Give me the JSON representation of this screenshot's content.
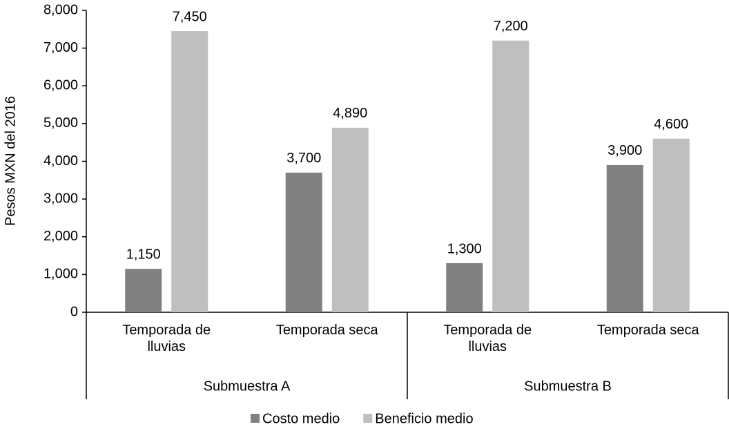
{
  "chart_data": {
    "type": "bar",
    "y_label": "Pesos MXN del 2016",
    "groups": [
      "Submuestra A",
      "Submuestra B"
    ],
    "categories": [
      "Temporada de\nlluvias",
      "Temporada seca",
      "Temporada de\nlluvias",
      "Temporada seca"
    ],
    "series": [
      {
        "name": "Costo medio",
        "color": "#808080",
        "values": [
          1150,
          3700,
          1300,
          3900
        ],
        "value_labels": [
          "1,150",
          "3,700",
          "1,300",
          "3,900"
        ]
      },
      {
        "name": "Beneficio medio",
        "color": "#bfbfbf",
        "values": [
          7450,
          4890,
          7200,
          4600
        ],
        "value_labels": [
          "7,450",
          "4,890",
          "7,200",
          "4,600"
        ]
      }
    ],
    "ylim": [
      0,
      8000
    ],
    "yticks": [
      0,
      {
        "value": 1000,
        "label": "1,000"
      },
      {
        "value": 2000,
        "label": "2,000"
      },
      {
        "value": 3000,
        "label": "3,000"
      },
      {
        "value": 4000,
        "label": "4,000"
      },
      {
        "value": 5000,
        "label": "5,000"
      },
      {
        "value": 6000,
        "label": "6,000"
      },
      {
        "value": 7000,
        "label": "7,000"
      },
      {
        "value": 8000,
        "label": "8,000"
      }
    ],
    "legend": "bottom"
  }
}
